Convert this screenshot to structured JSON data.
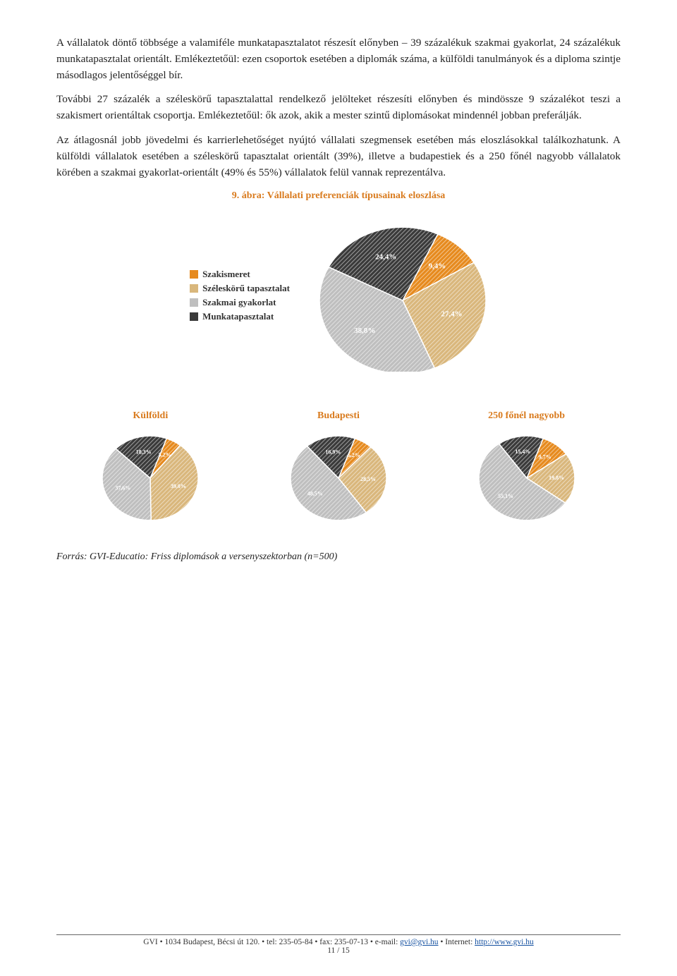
{
  "paragraphs": {
    "p1": "A vállalatok döntő többsége a valamiféle munkatapasztalatot részesít előnyben – 39 százalékuk szakmai gyakorlat, 24 százalékuk munkatapasztalat orientált. Emlékeztetőül: ezen csoportok esetében a diplomák száma, a külföldi tanulmányok és a diploma szintje másodlagos jelentőséggel bír.",
    "p2": "További 27 százalék a széleskörű tapasztalattal rendelkező jelölteket részesíti előnyben és mindössze 9 százalékot teszi a szakismert orientáltak csoportja. Emlékeztetőül: ők azok, akik a mester szintű diplomásokat mindennél jobban preferálják.",
    "p3": "Az átlagosnál jobb jövedelmi és karrierlehetőséget nyújtó vállalati szegmensek esetében más eloszlásokkal találkozhatunk. A külföldi vállalatok esetében a széleskörű tapasztalat orientált (39%), illetve a budapestiek és a 250 főnél nagyobb vállalatok körében a szakmai gyakorlat-orientált (49% és 55%) vállalatok felül vannak reprezentálva."
  },
  "figure": {
    "number": "9.",
    "label": "ábra: Vállalati preferenciák típusainak eloszlása"
  },
  "colors": {
    "szakismeret": "#e68a1e",
    "szeleskoru": "#d9b77c",
    "szakmai": "#bfbfbf",
    "munkatapasztalat": "#3a3a3a",
    "accent": "#d97b1e"
  },
  "legend": {
    "items": [
      {
        "label": "Szakismeret",
        "color": "#e68a1e"
      },
      {
        "label": "Széleskörű tapasztalat",
        "color": "#d9b77c"
      },
      {
        "label": "Szakmai gyakorlat",
        "color": "#bfbfbf"
      },
      {
        "label": "Munkatapasztalat",
        "color": "#3a3a3a"
      }
    ]
  },
  "main_pie": {
    "type": "pie",
    "size": 240,
    "slices": [
      {
        "label": "9,4%",
        "value": 9.4,
        "color": "#e68a1e"
      },
      {
        "label": "27,4%",
        "value": 27.4,
        "color": "#d9b77c"
      },
      {
        "label": "38,8%",
        "value": 38.8,
        "color": "#bfbfbf"
      },
      {
        "label": "24,4%",
        "value": 24.4,
        "color": "#3a3a3a"
      }
    ],
    "start_angle": -65
  },
  "small_pies": [
    {
      "title": "Külföldi",
      "size": 140,
      "start_angle": -70,
      "slices": [
        {
          "label": "5,2%",
          "value": 5.2,
          "color": "#e68a1e"
        },
        {
          "label": "39,0%",
          "value": 39.0,
          "color": "#d9b77c"
        },
        {
          "label": "37,6%",
          "value": 37.6,
          "color": "#bfbfbf"
        },
        {
          "label": "18,3%",
          "value": 18.3,
          "color": "#3a3a3a"
        }
      ]
    },
    {
      "title": "Budapesti",
      "size": 140,
      "start_angle": -70,
      "slices": [
        {
          "label": "6,2%",
          "value": 6.2,
          "color": "#e68a1e"
        },
        {
          "label": "28,5%",
          "value": 28.5,
          "color": "#d9b77c"
        },
        {
          "label": "48,5%",
          "value": 48.5,
          "color": "#bfbfbf"
        },
        {
          "label": "16,9%",
          "value": 16.9,
          "color": "#3a3a3a"
        }
      ]
    },
    {
      "title": "250 főnél nagyobb",
      "size": 140,
      "start_angle": -70,
      "slices": [
        {
          "label": "9,7%",
          "value": 9.7,
          "color": "#e68a1e"
        },
        {
          "label": "19,8%",
          "value": 19.8,
          "color": "#d9b77c"
        },
        {
          "label": "55,1%",
          "value": 55.1,
          "color": "#bfbfbf"
        },
        {
          "label": "15,4%",
          "value": 15.4,
          "color": "#3a3a3a"
        }
      ]
    }
  ],
  "source": "Forrás: GVI-Educatio: Friss diplomások a versenyszektorban (n=500)",
  "footer": {
    "left": "GVI • 1034 Budapest, Bécsi út 120. • tel: 235-05-84 • fax: 235-07-13 • e-mail: ",
    "email": "gvi@gvi.hu",
    "mid": " • Internet: ",
    "url": "http://www.gvi.hu",
    "page": "11 / 15"
  }
}
